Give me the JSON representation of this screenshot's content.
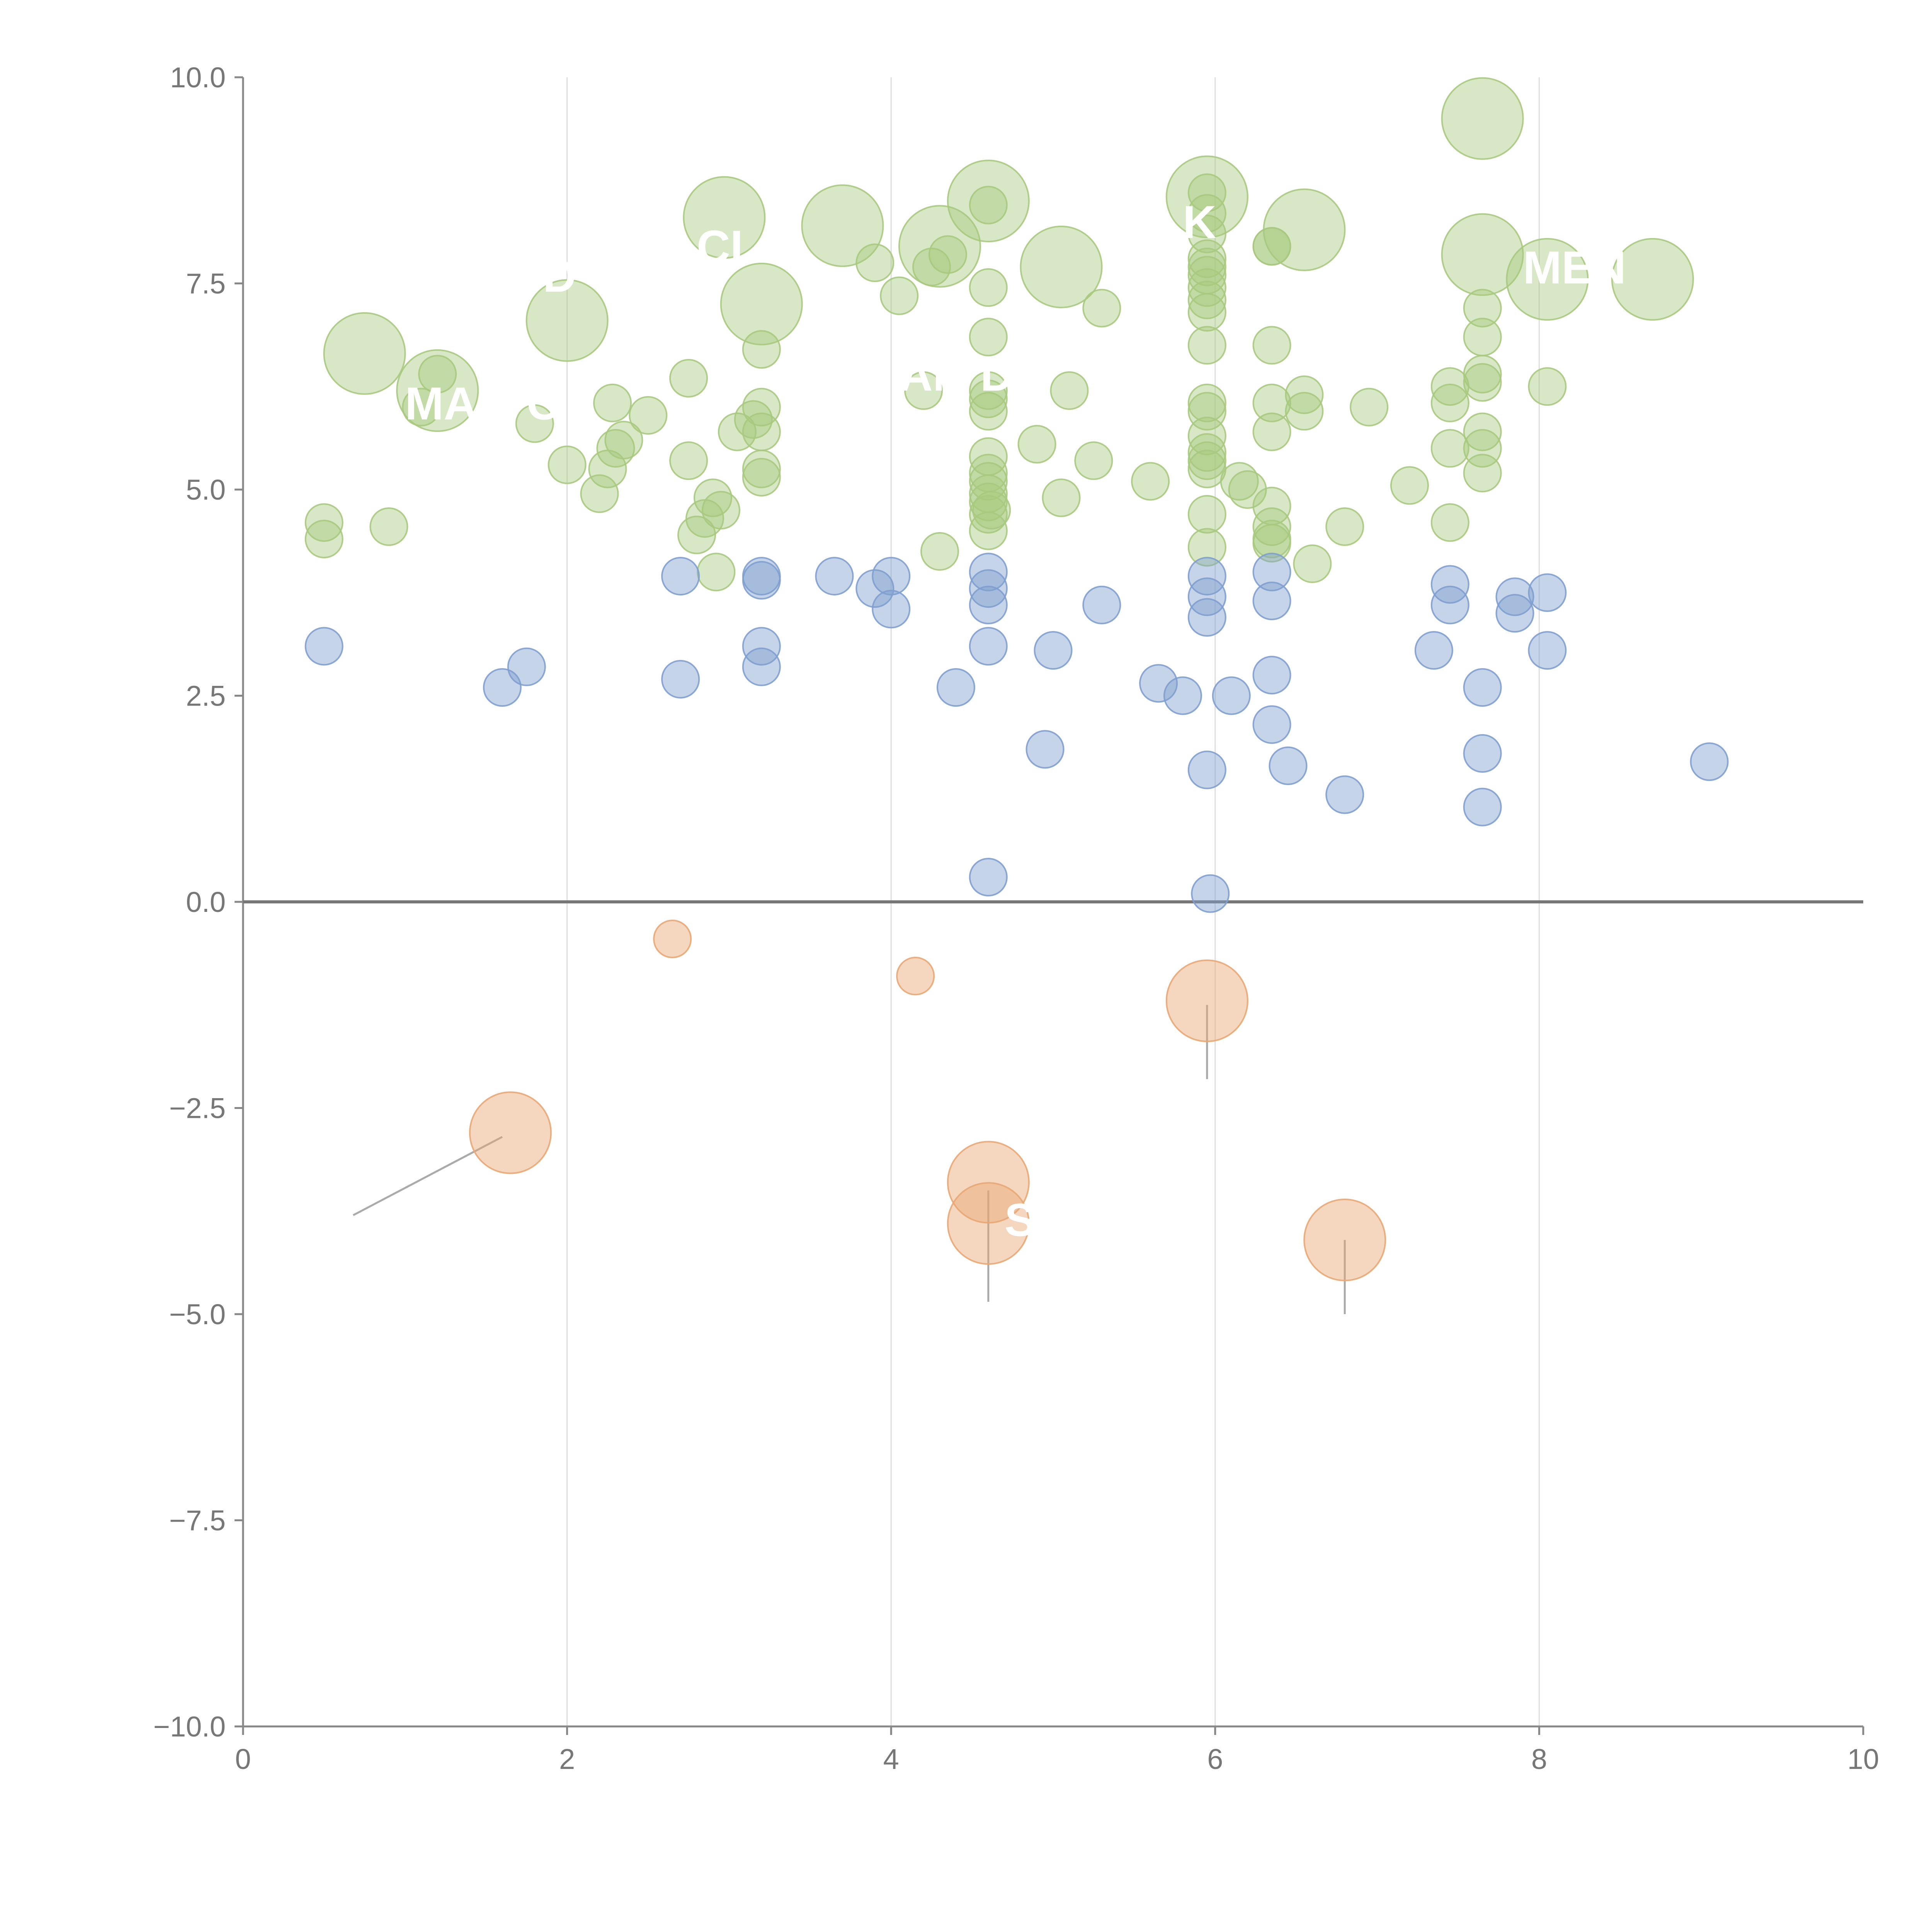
{
  "chart_data": {
    "type": "scatter",
    "title": "",
    "xlabel": "",
    "ylabel": "",
    "xlim": [
      0,
      10
    ],
    "ylim": [
      -10,
      10
    ],
    "grid": "vertical",
    "x_ticks": [
      "0",
      "2",
      "4",
      "6",
      "8",
      "10"
    ],
    "y_ticks": [
      "10.0",
      "7.5",
      "5.0",
      "2.5",
      "0.0",
      "−2.5",
      "−5.0",
      "−7.5",
      "−10.0"
    ],
    "colors": {
      "green": "#a8c97f",
      "blue": "#7f9fcf",
      "orange": "#e9a774",
      "axis": "#888888",
      "zero_line": "#777777",
      "grid": "#dddddd"
    },
    "series": [
      {
        "name": "green",
        "points": [
          {
            "x": 0.75,
            "y": 6.65,
            "size": 2
          },
          {
            "x": 1.2,
            "y": 6.2,
            "size": 2
          },
          {
            "x": 1.2,
            "y": 6.4,
            "size": 1
          },
          {
            "x": 0.5,
            "y": 4.6,
            "size": 1
          },
          {
            "x": 0.5,
            "y": 4.4,
            "size": 1
          },
          {
            "x": 0.9,
            "y": 4.55,
            "size": 1
          },
          {
            "x": 1.1,
            "y": 6.0,
            "size": 1
          },
          {
            "x": 1.8,
            "y": 5.8,
            "size": 1
          },
          {
            "x": 2.0,
            "y": 7.05,
            "size": 2
          },
          {
            "x": 2.0,
            "y": 5.3,
            "size": 1
          },
          {
            "x": 2.2,
            "y": 4.95,
            "size": 1
          },
          {
            "x": 2.25,
            "y": 5.25,
            "size": 1
          },
          {
            "x": 2.3,
            "y": 5.5,
            "size": 1
          },
          {
            "x": 2.35,
            "y": 5.6,
            "size": 1
          },
          {
            "x": 2.28,
            "y": 6.05,
            "size": 1
          },
          {
            "x": 2.5,
            "y": 5.9,
            "size": 1
          },
          {
            "x": 2.75,
            "y": 6.35,
            "size": 1
          },
          {
            "x": 2.75,
            "y": 5.35,
            "size": 1
          },
          {
            "x": 2.8,
            "y": 4.45,
            "size": 1
          },
          {
            "x": 2.85,
            "y": 4.65,
            "size": 1
          },
          {
            "x": 2.9,
            "y": 4.9,
            "size": 1
          },
          {
            "x": 2.95,
            "y": 4.75,
            "size": 1
          },
          {
            "x": 2.92,
            "y": 4.0,
            "size": 1
          },
          {
            "x": 2.97,
            "y": 8.3,
            "size": 2
          },
          {
            "x": 3.05,
            "y": 5.7,
            "size": 1
          },
          {
            "x": 3.15,
            "y": 5.85,
            "size": 1
          },
          {
            "x": 3.2,
            "y": 6.7,
            "size": 1
          },
          {
            "x": 3.2,
            "y": 6.0,
            "size": 1
          },
          {
            "x": 3.2,
            "y": 5.7,
            "size": 1
          },
          {
            "x": 3.2,
            "y": 5.25,
            "size": 1
          },
          {
            "x": 3.2,
            "y": 5.15,
            "size": 1
          },
          {
            "x": 3.2,
            "y": 7.25,
            "size": 2
          },
          {
            "x": 3.7,
            "y": 8.2,
            "size": 2
          },
          {
            "x": 3.9,
            "y": 7.75,
            "size": 1
          },
          {
            "x": 4.05,
            "y": 7.35,
            "size": 1
          },
          {
            "x": 4.2,
            "y": 6.2,
            "size": 1
          },
          {
            "x": 4.25,
            "y": 7.7,
            "size": 1
          },
          {
            "x": 4.3,
            "y": 7.95,
            "size": 2
          },
          {
            "x": 4.35,
            "y": 7.85,
            "size": 1
          },
          {
            "x": 4.3,
            "y": 4.25,
            "size": 1
          },
          {
            "x": 4.6,
            "y": 8.5,
            "size": 2
          },
          {
            "x": 4.6,
            "y": 8.45,
            "size": 1
          },
          {
            "x": 4.6,
            "y": 7.45,
            "size": 1
          },
          {
            "x": 4.6,
            "y": 6.85,
            "size": 1
          },
          {
            "x": 4.6,
            "y": 6.2,
            "size": 1
          },
          {
            "x": 4.6,
            "y": 6.1,
            "size": 1
          },
          {
            "x": 4.6,
            "y": 5.95,
            "size": 1
          },
          {
            "x": 4.6,
            "y": 5.4,
            "size": 1
          },
          {
            "x": 4.6,
            "y": 5.2,
            "size": 1
          },
          {
            "x": 4.6,
            "y": 5.1,
            "size": 1
          },
          {
            "x": 4.6,
            "y": 4.95,
            "size": 1
          },
          {
            "x": 4.6,
            "y": 4.85,
            "size": 1
          },
          {
            "x": 4.6,
            "y": 4.7,
            "size": 1
          },
          {
            "x": 4.6,
            "y": 4.5,
            "size": 1
          },
          {
            "x": 4.62,
            "y": 4.75,
            "size": 1
          },
          {
            "x": 4.9,
            "y": 5.55,
            "size": 1
          },
          {
            "x": 5.05,
            "y": 7.7,
            "size": 2
          },
          {
            "x": 5.05,
            "y": 4.9,
            "size": 1
          },
          {
            "x": 5.1,
            "y": 6.2,
            "size": 1
          },
          {
            "x": 5.25,
            "y": 5.35,
            "size": 1
          },
          {
            "x": 5.3,
            "y": 7.2,
            "size": 1
          },
          {
            "x": 5.6,
            "y": 5.1,
            "size": 1
          },
          {
            "x": 5.95,
            "y": 8.55,
            "size": 2
          },
          {
            "x": 5.95,
            "y": 8.6,
            "size": 1
          },
          {
            "x": 5.95,
            "y": 8.35,
            "size": 1
          },
          {
            "x": 5.95,
            "y": 8.1,
            "size": 1
          },
          {
            "x": 5.95,
            "y": 7.8,
            "size": 1
          },
          {
            "x": 5.95,
            "y": 7.7,
            "size": 1
          },
          {
            "x": 5.95,
            "y": 7.6,
            "size": 1
          },
          {
            "x": 5.95,
            "y": 7.45,
            "size": 1
          },
          {
            "x": 5.95,
            "y": 7.3,
            "size": 1
          },
          {
            "x": 5.95,
            "y": 7.15,
            "size": 1
          },
          {
            "x": 5.95,
            "y": 6.75,
            "size": 1
          },
          {
            "x": 5.95,
            "y": 6.05,
            "size": 1
          },
          {
            "x": 5.95,
            "y": 5.95,
            "size": 1
          },
          {
            "x": 5.95,
            "y": 5.65,
            "size": 1
          },
          {
            "x": 5.95,
            "y": 5.45,
            "size": 1
          },
          {
            "x": 5.95,
            "y": 5.35,
            "size": 1
          },
          {
            "x": 5.95,
            "y": 5.25,
            "size": 1
          },
          {
            "x": 5.95,
            "y": 4.7,
            "size": 1
          },
          {
            "x": 5.95,
            "y": 4.3,
            "size": 1
          },
          {
            "x": 6.15,
            "y": 5.1,
            "size": 1
          },
          {
            "x": 6.2,
            "y": 5.0,
            "size": 1
          },
          {
            "x": 6.35,
            "y": 7.95,
            "size": 1
          },
          {
            "x": 6.35,
            "y": 7.95,
            "size": 1
          },
          {
            "x": 6.35,
            "y": 6.75,
            "size": 1
          },
          {
            "x": 6.35,
            "y": 6.05,
            "size": 1
          },
          {
            "x": 6.35,
            "y": 5.7,
            "size": 1
          },
          {
            "x": 6.35,
            "y": 4.8,
            "size": 1
          },
          {
            "x": 6.35,
            "y": 4.55,
            "size": 1
          },
          {
            "x": 6.35,
            "y": 4.4,
            "size": 1
          },
          {
            "x": 6.35,
            "y": 4.35,
            "size": 1
          },
          {
            "x": 6.55,
            "y": 8.15,
            "size": 2
          },
          {
            "x": 6.55,
            "y": 6.15,
            "size": 1
          },
          {
            "x": 6.55,
            "y": 5.95,
            "size": 1
          },
          {
            "x": 6.6,
            "y": 4.1,
            "size": 1
          },
          {
            "x": 6.8,
            "y": 4.55,
            "size": 1
          },
          {
            "x": 6.95,
            "y": 6.0,
            "size": 1
          },
          {
            "x": 7.2,
            "y": 5.05,
            "size": 1
          },
          {
            "x": 7.45,
            "y": 6.25,
            "size": 1
          },
          {
            "x": 7.45,
            "y": 6.05,
            "size": 1
          },
          {
            "x": 7.45,
            "y": 5.5,
            "size": 1
          },
          {
            "x": 7.45,
            "y": 4.6,
            "size": 1
          },
          {
            "x": 7.65,
            "y": 9.5,
            "size": 2
          },
          {
            "x": 7.65,
            "y": 7.85,
            "size": 2
          },
          {
            "x": 7.65,
            "y": 7.2,
            "size": 1
          },
          {
            "x": 7.65,
            "y": 6.85,
            "size": 1
          },
          {
            "x": 7.65,
            "y": 6.4,
            "size": 1
          },
          {
            "x": 7.65,
            "y": 6.3,
            "size": 1
          },
          {
            "x": 7.65,
            "y": 5.7,
            "size": 1
          },
          {
            "x": 7.65,
            "y": 5.5,
            "size": 1
          },
          {
            "x": 7.65,
            "y": 5.2,
            "size": 1
          },
          {
            "x": 8.05,
            "y": 7.55,
            "size": 2
          },
          {
            "x": 8.05,
            "y": 6.25,
            "size": 1
          },
          {
            "x": 8.7,
            "y": 7.55,
            "size": 2
          }
        ]
      },
      {
        "name": "blue",
        "points": [
          {
            "x": 0.5,
            "y": 3.1,
            "size": 1
          },
          {
            "x": 1.6,
            "y": 2.6,
            "size": 1
          },
          {
            "x": 1.75,
            "y": 2.85,
            "size": 1
          },
          {
            "x": 2.7,
            "y": 3.95,
            "size": 1
          },
          {
            "x": 2.7,
            "y": 2.7,
            "size": 1
          },
          {
            "x": 3.2,
            "y": 3.95,
            "size": 1
          },
          {
            "x": 3.2,
            "y": 3.9,
            "size": 1
          },
          {
            "x": 3.2,
            "y": 3.1,
            "size": 1
          },
          {
            "x": 3.2,
            "y": 2.85,
            "size": 1
          },
          {
            "x": 3.65,
            "y": 3.95,
            "size": 1
          },
          {
            "x": 3.9,
            "y": 3.8,
            "size": 1
          },
          {
            "x": 4.0,
            "y": 3.95,
            "size": 1
          },
          {
            "x": 4.0,
            "y": 3.55,
            "size": 1
          },
          {
            "x": 4.4,
            "y": 2.6,
            "size": 1
          },
          {
            "x": 4.6,
            "y": 4.0,
            "size": 1
          },
          {
            "x": 4.6,
            "y": 3.8,
            "size": 1
          },
          {
            "x": 4.6,
            "y": 3.6,
            "size": 1
          },
          {
            "x": 4.6,
            "y": 3.1,
            "size": 1
          },
          {
            "x": 4.6,
            "y": 0.3,
            "size": 1
          },
          {
            "x": 5.0,
            "y": 3.05,
            "size": 1
          },
          {
            "x": 4.95,
            "y": 1.85,
            "size": 1
          },
          {
            "x": 5.3,
            "y": 3.6,
            "size": 1
          },
          {
            "x": 5.65,
            "y": 2.65,
            "size": 1
          },
          {
            "x": 5.8,
            "y": 2.5,
            "size": 1
          },
          {
            "x": 5.95,
            "y": 3.95,
            "size": 1
          },
          {
            "x": 5.95,
            "y": 3.7,
            "size": 1
          },
          {
            "x": 5.95,
            "y": 3.45,
            "size": 1
          },
          {
            "x": 5.95,
            "y": 1.6,
            "size": 1
          },
          {
            "x": 5.97,
            "y": 0.1,
            "size": 1
          },
          {
            "x": 6.1,
            "y": 2.5,
            "size": 1
          },
          {
            "x": 6.35,
            "y": 4.0,
            "size": 1
          },
          {
            "x": 6.35,
            "y": 3.65,
            "size": 1
          },
          {
            "x": 6.35,
            "y": 2.75,
            "size": 1
          },
          {
            "x": 6.35,
            "y": 2.15,
            "size": 1
          },
          {
            "x": 6.45,
            "y": 1.65,
            "size": 1
          },
          {
            "x": 6.8,
            "y": 1.3,
            "size": 1
          },
          {
            "x": 7.35,
            "y": 3.05,
            "size": 1
          },
          {
            "x": 7.45,
            "y": 3.85,
            "size": 1
          },
          {
            "x": 7.45,
            "y": 3.6,
            "size": 1
          },
          {
            "x": 7.65,
            "y": 2.6,
            "size": 1
          },
          {
            "x": 7.65,
            "y": 1.8,
            "size": 1
          },
          {
            "x": 7.65,
            "y": 1.15,
            "size": 1
          },
          {
            "x": 7.85,
            "y": 3.7,
            "size": 1
          },
          {
            "x": 7.85,
            "y": 3.5,
            "size": 1
          },
          {
            "x": 8.05,
            "y": 3.75,
            "size": 1
          },
          {
            "x": 8.05,
            "y": 3.05,
            "size": 1
          },
          {
            "x": 9.05,
            "y": 1.7,
            "size": 1
          }
        ]
      },
      {
        "name": "orange",
        "points": [
          {
            "x": 1.65,
            "y": -2.8,
            "size": 2
          },
          {
            "x": 2.65,
            "y": -0.45,
            "size": 1
          },
          {
            "x": 4.15,
            "y": -0.9,
            "size": 1
          },
          {
            "x": 4.6,
            "y": -3.4,
            "size": 2
          },
          {
            "x": 4.6,
            "y": -3.9,
            "size": 2
          },
          {
            "x": 5.95,
            "y": -1.2,
            "size": 2
          },
          {
            "x": 6.8,
            "y": -4.1,
            "size": 2
          }
        ]
      }
    ],
    "label_lines": [
      {
        "x1": 1.6,
        "y1": -2.85,
        "x2": 0.68,
        "y2": -3.8
      },
      {
        "x1": 4.6,
        "y1": -3.5,
        "x2": 4.6,
        "y2": -4.85
      },
      {
        "x1": 5.95,
        "y1": -1.25,
        "x2": 5.95,
        "y2": -2.15
      },
      {
        "x1": 6.8,
        "y1": -4.1,
        "x2": 6.8,
        "y2": -5.0
      }
    ],
    "annotations": [
      {
        "text": "MAR",
        "x": 1.0,
        "y": 5.85
      },
      {
        "text": "C",
        "x": 1.75,
        "y": 5.85
      },
      {
        "text": "D",
        "x": 1.85,
        "y": 7.4
      },
      {
        "text": "CLO",
        "x": 2.8,
        "y": 7.75
      },
      {
        "text": "AM",
        "x": 4.05,
        "y": 6.2
      },
      {
        "text": "D",
        "x": 4.55,
        "y": 6.2
      },
      {
        "text": "K",
        "x": 5.8,
        "y": 8.05
      },
      {
        "text": "MEN",
        "x": 7.9,
        "y": 7.5
      },
      {
        "text": "S",
        "x": 4.7,
        "y": -4.05
      }
    ]
  }
}
